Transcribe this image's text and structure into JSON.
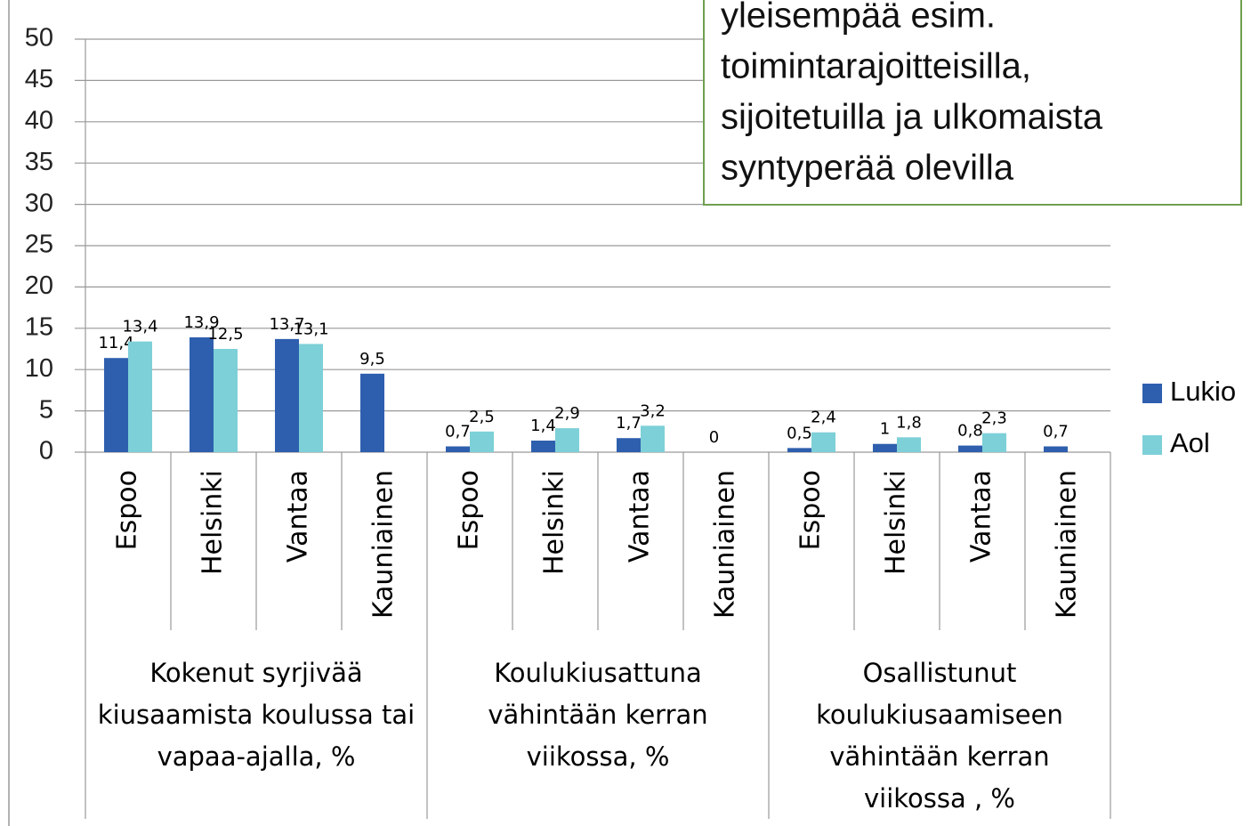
{
  "chart_data": {
    "type": "bar",
    "categories": [
      "Espoo",
      "Helsinki",
      "Vantaa",
      "Kauniainen",
      "Espoo",
      "Helsinki",
      "Vantaa",
      "Kauniainen",
      "Espoo",
      "Helsinki",
      "Vantaa",
      "Kauniainen"
    ],
    "groups": [
      [
        "Kokenut syrjivää",
        "kiusaamista koulussa tai",
        "vapaa-ajalla, %"
      ],
      [
        "Koulukiusattuna",
        "vähintään kerran",
        "viikossa, %"
      ],
      [
        "Osallistunut",
        "koulukiusaamiseen",
        "vähintään kerran",
        "viikossa , %"
      ]
    ],
    "series": [
      {
        "name": "Lukio",
        "color": "#2e5fae",
        "values": [
          11.4,
          13.9,
          13.7,
          9.5,
          0.7,
          1.4,
          1.7,
          0,
          0.5,
          1,
          0.8,
          0.7
        ],
        "value_labels": [
          "11,4",
          "13,9",
          "13,7",
          "9,5",
          "0,7",
          "1,4",
          "1,7",
          "0",
          "0,5",
          "1",
          "0,8",
          "0,7"
        ]
      },
      {
        "name": "Aol",
        "color": "#7dd0d8",
        "values": [
          13.4,
          12.5,
          13.1,
          null,
          2.5,
          2.9,
          3.2,
          null,
          2.4,
          1.8,
          2.3,
          null
        ],
        "value_labels": [
          "13,4",
          "12,5",
          "13,1",
          null,
          "2,5",
          "2,9",
          "3,2",
          null,
          "2,4",
          "1,8",
          "2,3",
          null
        ]
      }
    ],
    "ylim": [
      0,
      50
    ],
    "yticks": [
      0,
      5,
      10,
      15,
      20,
      25,
      30,
      35,
      40,
      45,
      50
    ],
    "grid": true,
    "legend": "right",
    "annotation": [
      "yleisempää esim.",
      "toimintarajoitteisilla,",
      "sijoitetuilla ja ulkomaista",
      "syntyperää olevilla"
    ]
  }
}
